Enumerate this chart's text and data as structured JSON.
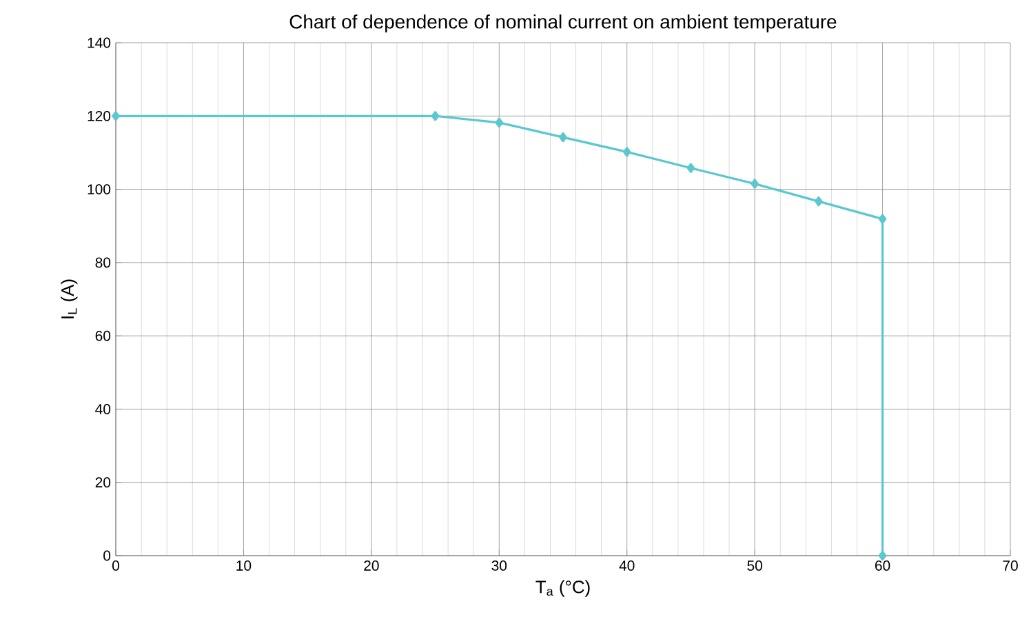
{
  "chart_data": {
    "type": "line",
    "title": "Chart of dependence of nominal current on ambient temperature",
    "xlabel": "T$_{a}$ (°C)",
    "ylabel": "I$_{L}$ (A)",
    "x": [
      0,
      25,
      30,
      35,
      40,
      45,
      50,
      55,
      60,
      60
    ],
    "values": [
      120,
      120,
      118.2,
      114.2,
      110.2,
      105.8,
      101.5,
      96.7,
      91.9,
      0
    ],
    "color": "#5bc8cf",
    "marker": "diamond",
    "line_style": "solid",
    "xlim": [
      0,
      70
    ],
    "xticks": [
      0,
      10,
      20,
      30,
      40,
      50,
      60,
      70
    ],
    "ylim": [
      0,
      140
    ],
    "yticks": [
      0,
      20,
      40,
      60,
      80,
      100,
      120,
      140
    ],
    "grid": true
  }
}
